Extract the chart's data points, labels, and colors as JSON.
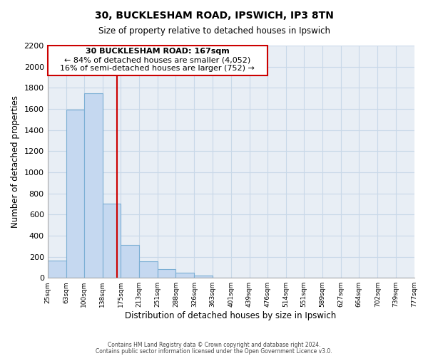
{
  "title": "30, BUCKLESHAM ROAD, IPSWICH, IP3 8TN",
  "subtitle": "Size of property relative to detached houses in Ipswich",
  "xlabel": "Distribution of detached houses by size in Ipswich",
  "ylabel": "Number of detached properties",
  "footer_line1": "Contains HM Land Registry data © Crown copyright and database right 2024.",
  "footer_line2": "Contains public sector information licensed under the Open Government Licence v3.0.",
  "annotation_line1": "30 BUCKLESHAM ROAD: 167sqm",
  "annotation_line2": "← 84% of detached houses are smaller (4,052)",
  "annotation_line3": "16% of semi-detached houses are larger (752) →",
  "property_size": 167,
  "bar_edges": [
    25,
    63,
    100,
    138,
    175,
    213,
    251,
    288,
    326,
    363,
    401,
    439,
    476,
    514,
    551,
    589,
    627,
    664,
    702,
    739,
    777
  ],
  "bar_heights": [
    160,
    1590,
    1750,
    700,
    315,
    155,
    85,
    50,
    20,
    0,
    0,
    0,
    0,
    0,
    0,
    0,
    0,
    0,
    0,
    0
  ],
  "bar_color": "#c5d8f0",
  "bar_edge_color": "#7bafd4",
  "line_color": "#cc0000",
  "box_edge_color": "#cc0000",
  "ylim": [
    0,
    2200
  ],
  "yticks": [
    0,
    200,
    400,
    600,
    800,
    1000,
    1200,
    1400,
    1600,
    1800,
    2000,
    2200
  ],
  "tick_labels": [
    "25sqm",
    "63sqm",
    "100sqm",
    "138sqm",
    "175sqm",
    "213sqm",
    "251sqm",
    "288sqm",
    "326sqm",
    "363sqm",
    "401sqm",
    "439sqm",
    "476sqm",
    "514sqm",
    "551sqm",
    "589sqm",
    "627sqm",
    "664sqm",
    "702sqm",
    "739sqm",
    "777sqm"
  ],
  "grid_color": "#c8d8e8",
  "background_color": "#ffffff",
  "plot_bg_color": "#e8eef5"
}
